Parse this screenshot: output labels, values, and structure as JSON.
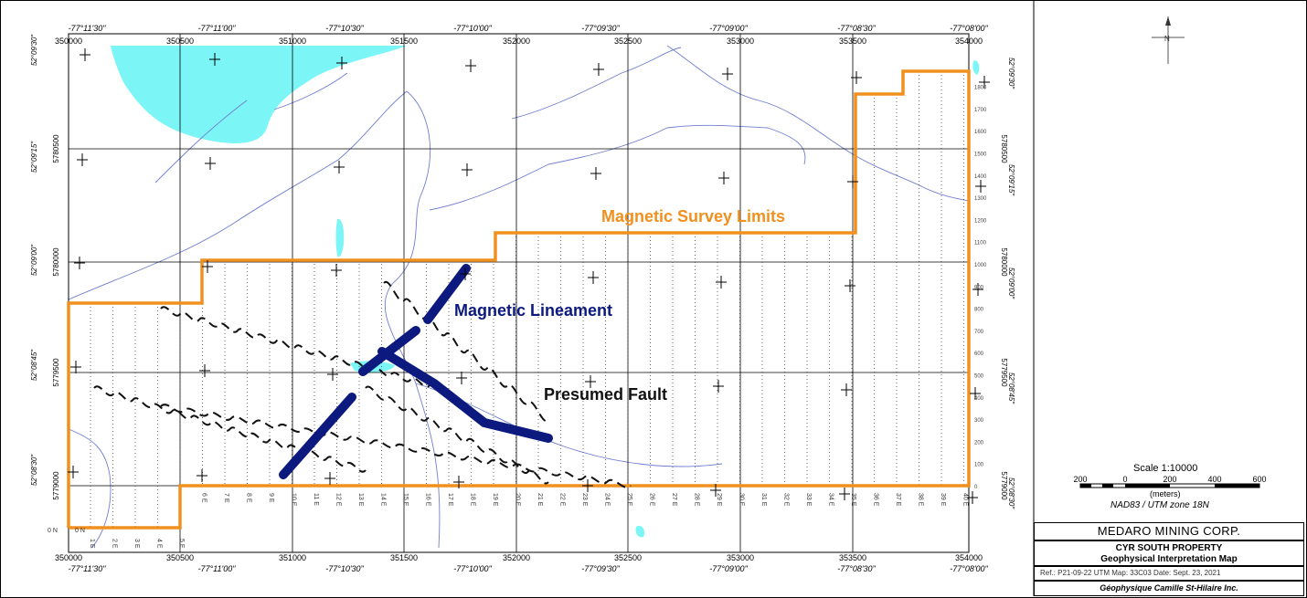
{
  "map": {
    "annotations": {
      "survey_limits": "Magnetic Survey Limits",
      "lineament": "Magnetic Lineament",
      "fault": "Presumed Fault"
    },
    "colors": {
      "survey_boundary": "#f0901e",
      "lineament": "#0c1a7f",
      "water": "#7cf5f7",
      "stream": "#6f7fd0",
      "grid": "#000000"
    },
    "utm_eastings": [
      "350000",
      "350500",
      "351000",
      "351500",
      "352000",
      "352500",
      "353000",
      "353500",
      "354000"
    ],
    "longitudes": [
      "-77°11'30\"",
      "-77°11'00\"",
      "-77°10'30\"",
      "-77°10'00\"",
      "-77°09'30\"",
      "-77°09'00\"",
      "-77°08'30\"",
      "-77°08'00\""
    ],
    "utm_northings": [
      "5780500",
      "5780000",
      "5779500",
      "5779000"
    ],
    "latitudes": [
      "52°09'30\"",
      "52°09'15\"",
      "52°09'00\"",
      "52°08'45\"",
      "52°08'30\""
    ],
    "station_labels": [
      "0",
      "100",
      "200",
      "300",
      "400",
      "500",
      "600",
      "700",
      "800",
      "900",
      "1000",
      "1100",
      "1200",
      "1300",
      "1400",
      "1500",
      "1600",
      "1700",
      "1800"
    ],
    "line_labels": [
      "0 N",
      "0 N",
      "1 E",
      "2 E",
      "3 E",
      "4 E",
      "5 E",
      "6 E",
      "7 E",
      "8 E",
      "9 E",
      "10 E",
      "11 E",
      "12 E",
      "13 E",
      "14 E",
      "15 E",
      "16 E",
      "17 E",
      "18 E",
      "19 E",
      "20 E",
      "21 E",
      "22 E",
      "23 E",
      "24 E",
      "25 E",
      "26 E",
      "27 E",
      "28 E",
      "29 E",
      "30 E",
      "31 E",
      "32 E",
      "33 E",
      "34 E",
      "35 E",
      "36 E",
      "37 E",
      "38 E",
      "39 E",
      "40 E"
    ]
  },
  "north_arrow": {
    "label": "N"
  },
  "scale": {
    "title": "Scale 1:10000",
    "units": "(meters)",
    "crs": "NAD83 / UTM zone 18N",
    "ticks": [
      "200",
      "0",
      "200",
      "400",
      "600"
    ]
  },
  "title_block": {
    "company": "MEDARO MINING CORP.",
    "property": "CYR SOUTH PROPERTY",
    "map_title": "Geophysical Interpretation Map",
    "ref": "Ref.: P21-09-22    UTM Map: 33C03    Date: Sept. 23, 2021",
    "firm": "Géophysique Camille St-Hilaire Inc."
  }
}
